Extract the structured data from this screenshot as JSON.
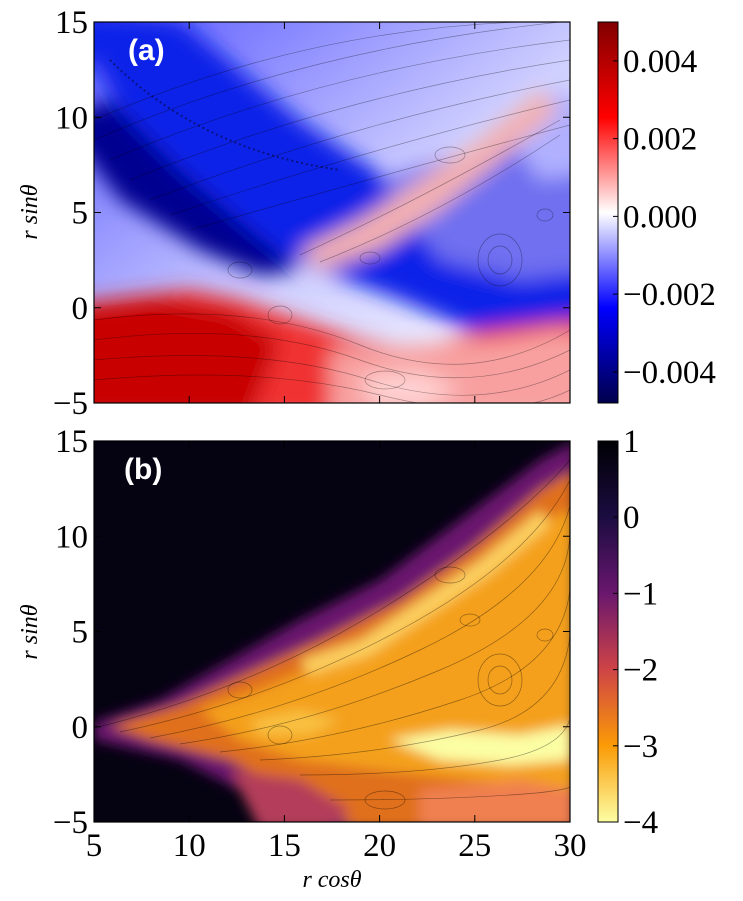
{
  "chart_data": [
    {
      "type": "heatmap",
      "panel_label": "(a)",
      "xlabel": "",
      "ylabel": "r sinθ",
      "xlim": [
        5,
        30
      ],
      "ylim": [
        -5,
        15
      ],
      "x_ticks": [
        5,
        10,
        15,
        20,
        25,
        30
      ],
      "y_ticks": [
        -5,
        0,
        5,
        10,
        15
      ],
      "y_tick_labels": [
        "−5",
        "0",
        "5",
        "10",
        "15"
      ],
      "x_tick_labels_shown": false,
      "streamlines": true,
      "colormap": "seismic",
      "colorbar": {
        "range": [
          -0.0048,
          0.005
        ],
        "ticks": [
          -0.004,
          -0.002,
          0.0,
          0.002,
          0.004
        ],
        "tick_labels": [
          "−0.004",
          "−0.002",
          "0.000",
          "0.002",
          "0.004"
        ],
        "colors": [
          "#00004c",
          "#0000ff",
          "#ffffff",
          "#ff0000",
          "#800000"
        ]
      }
    },
    {
      "type": "heatmap",
      "panel_label": "(b)",
      "xlabel": "r cosθ",
      "ylabel": "r sinθ",
      "xlim": [
        5,
        30
      ],
      "ylim": [
        -5,
        15
      ],
      "x_ticks": [
        5,
        10,
        15,
        20,
        25,
        30
      ],
      "x_tick_labels": [
        "5",
        "10",
        "15",
        "20",
        "25",
        "30"
      ],
      "y_ticks": [
        -5,
        0,
        5,
        10,
        15
      ],
      "y_tick_labels": [
        "−5",
        "0",
        "5",
        "10",
        "15"
      ],
      "streamlines": true,
      "colormap": "inferno_r",
      "colorbar": {
        "range": [
          -4,
          1
        ],
        "ticks": [
          -4,
          -3,
          -2,
          -1,
          0,
          1
        ],
        "tick_labels": [
          "−4",
          "−3",
          "−2",
          "−1",
          "0",
          "1"
        ],
        "colors": [
          "#fcfea4",
          "#fb9b06",
          "#cf4446",
          "#6a176e",
          "#1b0c41",
          "#000004"
        ]
      }
    }
  ]
}
